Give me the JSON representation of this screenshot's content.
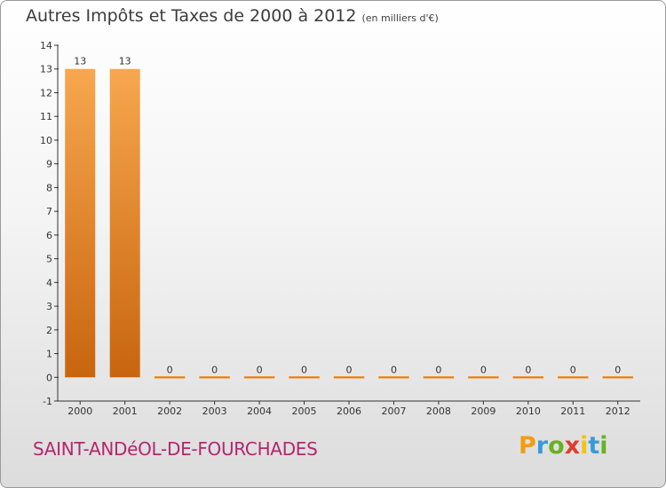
{
  "title": "Autres Impôts et Taxes de 2000 à 2012",
  "unit_note": "(en milliers d'€)",
  "location": "SAINT-ANDéOL-DE-FOURCHADES",
  "brand": {
    "letters": [
      "P",
      "r",
      "o",
      "x",
      "i",
      "t",
      "i"
    ],
    "colors": [
      "#f39c12",
      "#3a9ad9",
      "#6ab023",
      "#e03c31",
      "#f1c40f",
      "#3a9ad9",
      "#6ab023"
    ]
  },
  "colors": {
    "bar": "#f0922e",
    "bar_dark": "#c86414",
    "axis": "#333333"
  },
  "chart_data": {
    "type": "bar",
    "title": "Autres Impôts et Taxes de 2000 à 2012",
    "categories": [
      "2000",
      "2001",
      "2002",
      "2003",
      "2004",
      "2005",
      "2006",
      "2007",
      "2008",
      "2009",
      "2010",
      "2011",
      "2012"
    ],
    "values": [
      13,
      13,
      0,
      0,
      0,
      0,
      0,
      0,
      0,
      0,
      0,
      0,
      0
    ],
    "data_labels": [
      "13",
      "13",
      "0",
      "0",
      "0",
      "0",
      "0",
      "0",
      "0",
      "0",
      "0",
      "0",
      "0"
    ],
    "ylim": [
      -1,
      14
    ],
    "yticks": [
      -1,
      0,
      1,
      2,
      3,
      4,
      5,
      6,
      7,
      8,
      9,
      10,
      11,
      12,
      13,
      14
    ],
    "ytick_labels": [
      "-1",
      "0",
      "1",
      "2",
      "3",
      "4",
      "5",
      "6",
      "7",
      "8",
      "9",
      "10",
      "11",
      "12",
      "13",
      "14"
    ],
    "xlabel": "",
    "ylabel": "",
    "grid": false,
    "legend": "none"
  }
}
